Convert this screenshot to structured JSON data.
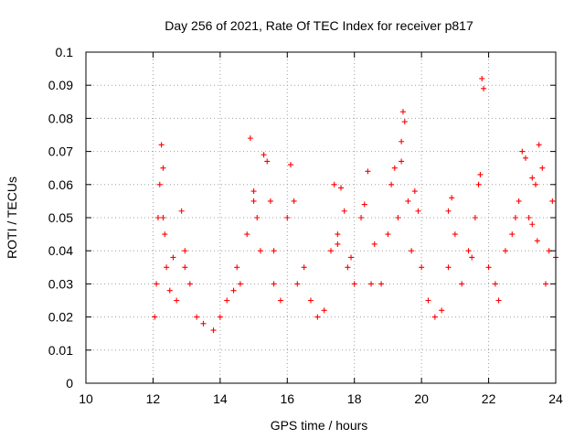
{
  "chart_data": {
    "type": "scatter",
    "title": "Day 256 of 2021, Rate Of TEC Index for receiver p817",
    "xlabel": "GPS time / hours",
    "ylabel": "ROTI / TECUs",
    "xlim": [
      10,
      24
    ],
    "ylim": [
      0,
      0.1
    ],
    "x_ticks": [
      "10",
      "12",
      "14",
      "16",
      "18",
      "20",
      "22",
      "24"
    ],
    "y_ticks": [
      "0",
      "0.01",
      "0.02",
      "0.03",
      "0.04",
      "0.05",
      "0.06",
      "0.07",
      "0.08",
      "0.09",
      "0.1"
    ],
    "grid": true,
    "marker": "+",
    "color": "#ff0000",
    "series": [
      {
        "name": "ROTI",
        "x": [
          12.05,
          12.1,
          12.15,
          12.2,
          12.25,
          12.3,
          12.35,
          12.4,
          12.5,
          12.6,
          12.7,
          12.85,
          12.95,
          13.1,
          13.3,
          13.5,
          13.8,
          14.0,
          14.2,
          14.4,
          14.5,
          14.6,
          14.8,
          14.9,
          15.0,
          15.1,
          15.2,
          15.3,
          15.4,
          15.5,
          15.6,
          15.8,
          16.0,
          16.1,
          16.2,
          16.3,
          16.5,
          16.7,
          16.9,
          17.1,
          17.3,
          17.4,
          17.5,
          17.6,
          17.7,
          17.8,
          17.9,
          18.0,
          18.2,
          18.3,
          18.4,
          18.6,
          18.8,
          19.0,
          19.1,
          19.2,
          19.3,
          19.4,
          19.45,
          19.5,
          19.6,
          19.7,
          19.8,
          19.9,
          20.0,
          20.2,
          20.4,
          20.6,
          20.8,
          20.9,
          21.0,
          21.2,
          21.4,
          21.5,
          21.6,
          21.7,
          21.8,
          21.85,
          22.0,
          22.2,
          22.3,
          22.5,
          22.7,
          22.8,
          22.9,
          23.0,
          23.1,
          23.2,
          23.3,
          23.4,
          23.5,
          23.6,
          23.7,
          23.8,
          23.9,
          24.0,
          12.3,
          12.95,
          15.0,
          15.6,
          17.5,
          18.5,
          19.4,
          20.8,
          21.75,
          23.3,
          23.45
        ],
        "y": [
          0.02,
          0.03,
          0.05,
          0.06,
          0.072,
          0.065,
          0.045,
          0.035,
          0.028,
          0.038,
          0.025,
          0.052,
          0.04,
          0.03,
          0.02,
          0.018,
          0.016,
          0.02,
          0.025,
          0.028,
          0.035,
          0.03,
          0.045,
          0.074,
          0.055,
          0.05,
          0.04,
          0.069,
          0.067,
          0.055,
          0.03,
          0.025,
          0.05,
          0.066,
          0.055,
          0.03,
          0.035,
          0.025,
          0.02,
          0.022,
          0.04,
          0.06,
          0.045,
          0.059,
          0.052,
          0.035,
          0.038,
          0.03,
          0.05,
          0.054,
          0.064,
          0.042,
          0.03,
          0.045,
          0.06,
          0.065,
          0.05,
          0.073,
          0.082,
          0.079,
          0.055,
          0.04,
          0.058,
          0.052,
          0.035,
          0.025,
          0.02,
          0.022,
          0.035,
          0.056,
          0.045,
          0.03,
          0.04,
          0.038,
          0.05,
          0.06,
          0.092,
          0.089,
          0.035,
          0.03,
          0.025,
          0.04,
          0.045,
          0.05,
          0.055,
          0.07,
          0.068,
          0.05,
          0.062,
          0.06,
          0.072,
          0.065,
          0.03,
          0.04,
          0.055,
          0.038,
          0.05,
          0.035,
          0.058,
          0.04,
          0.042,
          0.03,
          0.067,
          0.052,
          0.063,
          0.048,
          0.043
        ]
      }
    ]
  }
}
